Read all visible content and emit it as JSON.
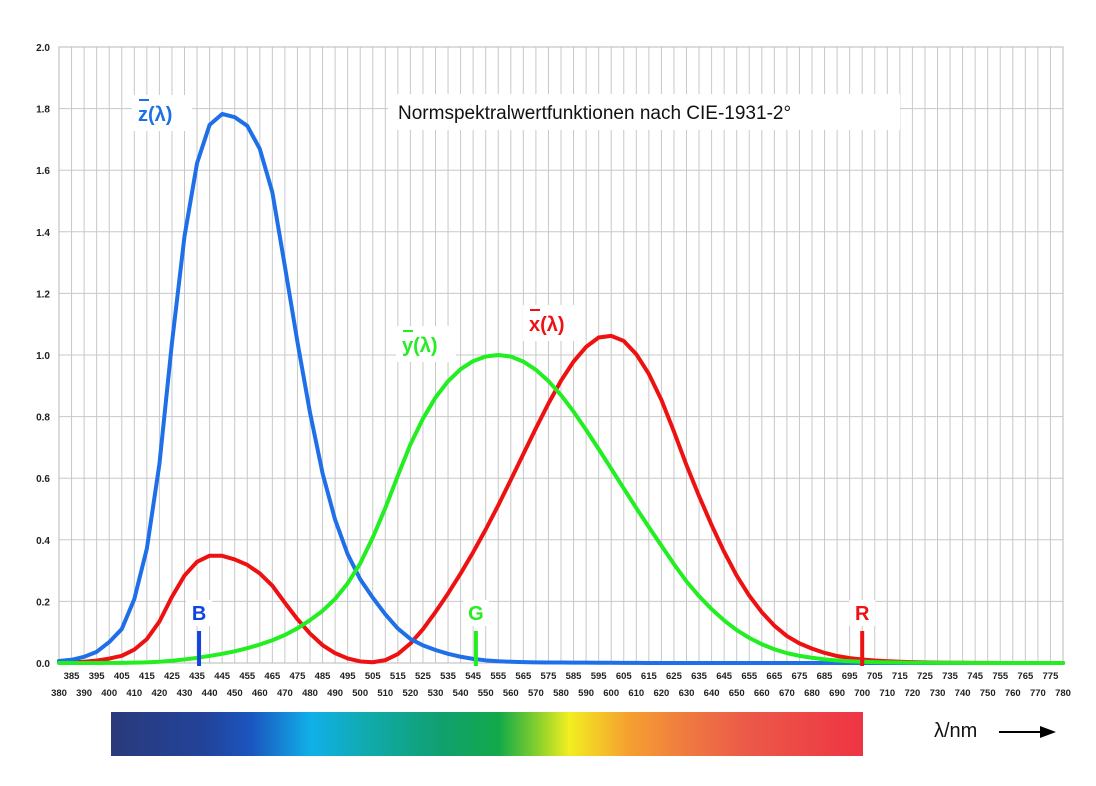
{
  "chart_data": {
    "type": "line",
    "title": "Normspektralwertfunktionen nach CIE-1931-2°",
    "xlabel": "λ/nm",
    "ylabel": "",
    "xlim": [
      380,
      780
    ],
    "ylim": [
      0.0,
      2.0
    ],
    "yticks": [
      "0.0",
      "0.2",
      "0.4",
      "0.6",
      "0.8",
      "1.0",
      "1.2",
      "1.4",
      "1.6",
      "1.8",
      "2.0"
    ],
    "grid": true,
    "x": [
      380,
      385,
      390,
      395,
      400,
      405,
      410,
      415,
      420,
      425,
      430,
      435,
      440,
      445,
      450,
      455,
      460,
      465,
      470,
      475,
      480,
      485,
      490,
      495,
      500,
      505,
      510,
      515,
      520,
      525,
      530,
      535,
      540,
      545,
      550,
      555,
      560,
      565,
      570,
      575,
      580,
      585,
      590,
      595,
      600,
      605,
      610,
      615,
      620,
      625,
      630,
      635,
      640,
      645,
      650,
      655,
      660,
      665,
      670,
      675,
      680,
      685,
      690,
      695,
      700,
      705,
      710,
      715,
      720,
      725,
      730,
      735,
      740,
      745,
      750,
      755,
      760,
      765,
      770,
      775,
      780
    ],
    "series": [
      {
        "name": "x̄(λ)",
        "label_text": "x(λ)",
        "color": "#ee1111",
        "values": [
          0.0014,
          0.0022,
          0.0042,
          0.0076,
          0.0143,
          0.0232,
          0.0435,
          0.0776,
          0.1344,
          0.2148,
          0.2839,
          0.3285,
          0.3483,
          0.3481,
          0.3362,
          0.3187,
          0.2908,
          0.2511,
          0.1954,
          0.1421,
          0.0956,
          0.058,
          0.032,
          0.0147,
          0.0049,
          0.0024,
          0.0093,
          0.0291,
          0.0633,
          0.1096,
          0.1655,
          0.2257,
          0.2904,
          0.3597,
          0.4334,
          0.5121,
          0.5945,
          0.6784,
          0.7621,
          0.8425,
          0.9163,
          0.9786,
          1.0263,
          1.0567,
          1.0622,
          1.0456,
          1.0026,
          0.9384,
          0.8544,
          0.7514,
          0.6424,
          0.5419,
          0.4479,
          0.3608,
          0.2835,
          0.2187,
          0.1649,
          0.1212,
          0.0874,
          0.0636,
          0.0468,
          0.0329,
          0.0227,
          0.0158,
          0.0114,
          0.0081,
          0.0058,
          0.0041,
          0.0029,
          0.002,
          0.0014,
          0.001,
          0.0007,
          0.0005,
          0.0003,
          0.0002,
          0.0002,
          0.0001,
          0.0001,
          0.0001,
          0.0
        ]
      },
      {
        "name": "ȳ(λ)",
        "label_text": "y(λ)",
        "color": "#22ee22",
        "values": [
          0.0,
          0.0001,
          0.0001,
          0.0002,
          0.0004,
          0.0006,
          0.0012,
          0.0022,
          0.004,
          0.0073,
          0.0116,
          0.0168,
          0.023,
          0.0298,
          0.038,
          0.048,
          0.06,
          0.0739,
          0.091,
          0.1126,
          0.139,
          0.1693,
          0.208,
          0.2586,
          0.323,
          0.4073,
          0.503,
          0.6082,
          0.71,
          0.7932,
          0.862,
          0.9149,
          0.954,
          0.9803,
          0.995,
          1.0,
          0.995,
          0.9786,
          0.952,
          0.9154,
          0.87,
          0.8163,
          0.757,
          0.6949,
          0.631,
          0.5668,
          0.503,
          0.4412,
          0.381,
          0.321,
          0.265,
          0.217,
          0.175,
          0.1382,
          0.107,
          0.0816,
          0.061,
          0.0446,
          0.032,
          0.0232,
          0.017,
          0.0119,
          0.0082,
          0.0057,
          0.0041,
          0.0029,
          0.0021,
          0.0015,
          0.001,
          0.0007,
          0.0005,
          0.0004,
          0.0003,
          0.0002,
          0.0001,
          0.0001,
          0.0001,
          0.0,
          0.0,
          0.0,
          0.0
        ]
      },
      {
        "name": "z̄(λ)",
        "label_text": "z(λ)",
        "color": "#1f6fe8",
        "values": [
          0.0065,
          0.0105,
          0.0201,
          0.0362,
          0.0679,
          0.1102,
          0.2074,
          0.3713,
          0.6456,
          1.0391,
          1.3856,
          1.623,
          1.7471,
          1.7826,
          1.7721,
          1.7441,
          1.6692,
          1.5281,
          1.2876,
          1.0419,
          0.813,
          0.6162,
          0.4652,
          0.3533,
          0.272,
          0.2123,
          0.1582,
          0.1117,
          0.0782,
          0.0573,
          0.0422,
          0.0298,
          0.0203,
          0.0134,
          0.0087,
          0.0057,
          0.0039,
          0.0027,
          0.0021,
          0.0018,
          0.0017,
          0.0014,
          0.0011,
          0.001,
          0.0008,
          0.0006,
          0.0003,
          0.0002,
          0.0002,
          0.0001,
          0.0,
          0.0,
          0.0,
          0.0,
          0.0,
          0.0,
          0.0,
          0.0,
          0.0,
          0.0,
          0.0,
          0.0,
          0.0,
          0.0,
          0.0,
          0.0,
          0.0,
          0.0,
          0.0,
          0.0,
          0.0,
          0.0,
          0.0,
          0.0,
          0.0,
          0.0,
          0.0,
          0.0,
          0.0,
          0.0,
          0.0
        ]
      }
    ],
    "primaries": [
      {
        "label": "B",
        "wavelength": 435.8,
        "color": "#1144dd"
      },
      {
        "label": "G",
        "wavelength": 546.1,
        "color": "#22ee22"
      },
      {
        "label": "R",
        "wavelength": 700,
        "color": "#ee1111"
      }
    ],
    "spectrum_bar": {
      "range": [
        380,
        700
      ],
      "stops": [
        {
          "wl": 380,
          "color": "#2a3a7a"
        },
        {
          "wl": 420,
          "color": "#22439a"
        },
        {
          "wl": 440,
          "color": "#1b56c0"
        },
        {
          "wl": 465,
          "color": "#10b0e8"
        },
        {
          "wl": 490,
          "color": "#10aaaa"
        },
        {
          "wl": 520,
          "color": "#10a070"
        },
        {
          "wl": 545,
          "color": "#12a94a"
        },
        {
          "wl": 560,
          "color": "#7ccc30"
        },
        {
          "wl": 575,
          "color": "#f2ee20"
        },
        {
          "wl": 600,
          "color": "#f5a030"
        },
        {
          "wl": 625,
          "color": "#ef7a40"
        },
        {
          "wl": 650,
          "color": "#ec5a48"
        },
        {
          "wl": 700,
          "color": "#ee3444"
        }
      ]
    }
  }
}
